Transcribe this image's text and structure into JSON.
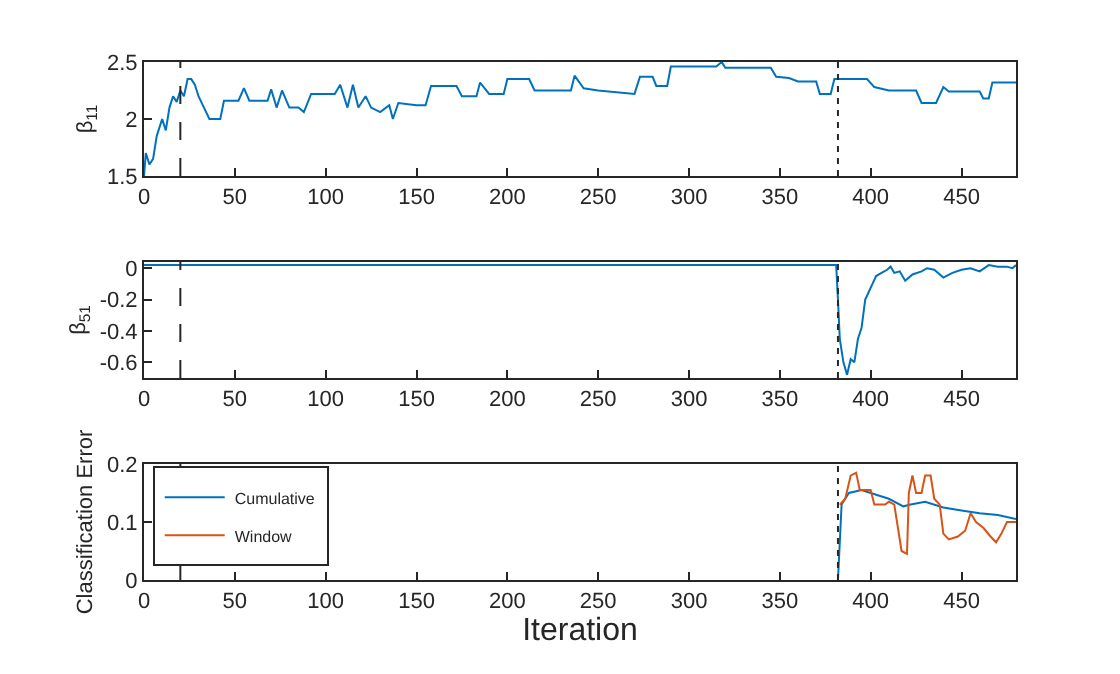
{
  "chart_data": [
    {
      "type": "line",
      "ylabel": "β$_{11}$",
      "xlim": [
        0,
        480
      ],
      "xticks": [
        0,
        50,
        100,
        150,
        200,
        250,
        300,
        350,
        400,
        450
      ],
      "ylim": [
        1.5,
        2.5
      ],
      "yticks": [
        1.5,
        2,
        2.5
      ],
      "legend": false,
      "x": [
        0,
        1,
        3,
        5,
        7,
        10,
        12,
        14,
        16,
        18,
        20,
        22,
        24,
        26,
        28,
        30,
        33,
        36,
        42,
        44,
        52,
        55,
        58,
        68,
        70,
        73,
        76,
        80,
        85,
        88,
        92,
        105,
        108,
        112,
        115,
        118,
        122,
        125,
        130,
        135,
        137,
        140,
        150,
        155,
        158,
        172,
        175,
        183,
        185,
        190,
        198,
        200,
        212,
        215,
        235,
        237,
        242,
        250,
        270,
        273,
        280,
        282,
        288,
        290,
        315,
        318,
        320,
        345,
        348,
        355,
        360,
        370,
        372,
        378,
        380,
        398,
        402,
        410,
        425,
        428,
        436,
        440,
        443,
        460,
        462,
        465,
        467,
        480
      ],
      "series": [
        {
          "color": "#0072bd",
          "values": [
            1.5,
            1.7,
            1.6,
            1.65,
            1.85,
            2.0,
            1.9,
            2.1,
            2.2,
            2.15,
            2.25,
            2.2,
            2.35,
            2.35,
            2.3,
            2.2,
            2.1,
            2.0,
            2.0,
            2.16,
            2.16,
            2.27,
            2.16,
            2.16,
            2.26,
            2.1,
            2.25,
            2.1,
            2.1,
            2.06,
            2.22,
            2.22,
            2.3,
            2.1,
            2.3,
            2.1,
            2.2,
            2.1,
            2.06,
            2.12,
            2.0,
            2.14,
            2.12,
            2.12,
            2.29,
            2.29,
            2.2,
            2.2,
            2.32,
            2.22,
            2.22,
            2.35,
            2.35,
            2.25,
            2.25,
            2.38,
            2.27,
            2.25,
            2.22,
            2.37,
            2.37,
            2.29,
            2.29,
            2.46,
            2.46,
            2.5,
            2.45,
            2.45,
            2.37,
            2.36,
            2.33,
            2.33,
            2.22,
            2.22,
            2.35,
            2.35,
            2.28,
            2.25,
            2.25,
            2.14,
            2.14,
            2.28,
            2.24,
            2.24,
            2.18,
            2.18,
            2.32,
            2.32
          ]
        }
      ],
      "ref_lines": [
        {
          "axis": "x",
          "value": 20,
          "color": "#262626",
          "line_style": "dashed"
        },
        {
          "axis": "x",
          "value": 382,
          "color": "#262626",
          "line_style": "dotted"
        }
      ]
    },
    {
      "type": "line",
      "ylabel": "β$_{51}$",
      "xlim": [
        0,
        480
      ],
      "xticks": [
        0,
        50,
        100,
        150,
        200,
        250,
        300,
        350,
        400,
        450
      ],
      "ylim": [
        -0.7,
        0.04
      ],
      "yticks": [
        -0.6,
        -0.4,
        -0.2,
        0
      ],
      "legend": false,
      "x": [
        0,
        381,
        382,
        383,
        385,
        387,
        389,
        391,
        393,
        395,
        397,
        399,
        401,
        403,
        406,
        409,
        411,
        413,
        416,
        419,
        423,
        428,
        431,
        435,
        440,
        445,
        450,
        455,
        460,
        465,
        470,
        475,
        478,
        480
      ],
      "series": [
        {
          "color": "#0072bd",
          "values": [
            0.02,
            0.02,
            -0.2,
            -0.45,
            -0.6,
            -0.68,
            -0.58,
            -0.6,
            -0.45,
            -0.38,
            -0.2,
            -0.15,
            -0.1,
            -0.05,
            -0.03,
            -0.01,
            0.01,
            -0.03,
            -0.02,
            -0.08,
            -0.04,
            -0.02,
            0,
            -0.01,
            -0.06,
            -0.03,
            -0.01,
            0,
            -0.02,
            0.02,
            0.01,
            0.01,
            0,
            0.02
          ]
        }
      ],
      "ref_lines": [
        {
          "axis": "x",
          "value": 20,
          "color": "#262626",
          "line_style": "dashed"
        },
        {
          "axis": "x",
          "value": 382,
          "color": "#262626",
          "line_style": "dotted"
        }
      ]
    },
    {
      "type": "line",
      "xlabel": "Iteration",
      "ylabel": "Classification Error",
      "xlim": [
        0,
        480
      ],
      "xticks": [
        0,
        50,
        100,
        150,
        200,
        250,
        300,
        350,
        400,
        450
      ],
      "ylim": [
        0,
        0.2
      ],
      "yticks": [
        0,
        0.1,
        0.2
      ],
      "legend": "top left",
      "series": [
        {
          "name": "Cumulative",
          "color": "#0072bd",
          "x": [
            382,
            384,
            388,
            395,
            400,
            410,
            418,
            422,
            430,
            440,
            450,
            460,
            470,
            480
          ],
          "values": [
            0,
            0.13,
            0.15,
            0.155,
            0.15,
            0.14,
            0.127,
            0.13,
            0.135,
            0.125,
            0.12,
            0.115,
            0.112,
            0.105
          ]
        },
        {
          "name": "Window",
          "color": "#d95319",
          "x": [
            383,
            386,
            389,
            392,
            394,
            400,
            402,
            408,
            410,
            413,
            415,
            417,
            420,
            421,
            423,
            425,
            428,
            430,
            433,
            435,
            438,
            440,
            443,
            448,
            452,
            455,
            458,
            462,
            466,
            469,
            472,
            475,
            480
          ],
          "values": [
            0.13,
            0.14,
            0.18,
            0.185,
            0.155,
            0.155,
            0.13,
            0.13,
            0.135,
            0.13,
            0.09,
            0.05,
            0.045,
            0.15,
            0.18,
            0.15,
            0.15,
            0.18,
            0.18,
            0.14,
            0.13,
            0.08,
            0.07,
            0.075,
            0.085,
            0.115,
            0.1,
            0.09,
            0.075,
            0.065,
            0.08,
            0.1,
            0.1
          ]
        }
      ],
      "ref_lines": [
        {
          "axis": "x",
          "value": 20,
          "color": "#262626",
          "line_style": "dashed"
        },
        {
          "axis": "x",
          "value": 382,
          "color": "#262626",
          "line_style": "dotted"
        }
      ]
    }
  ]
}
